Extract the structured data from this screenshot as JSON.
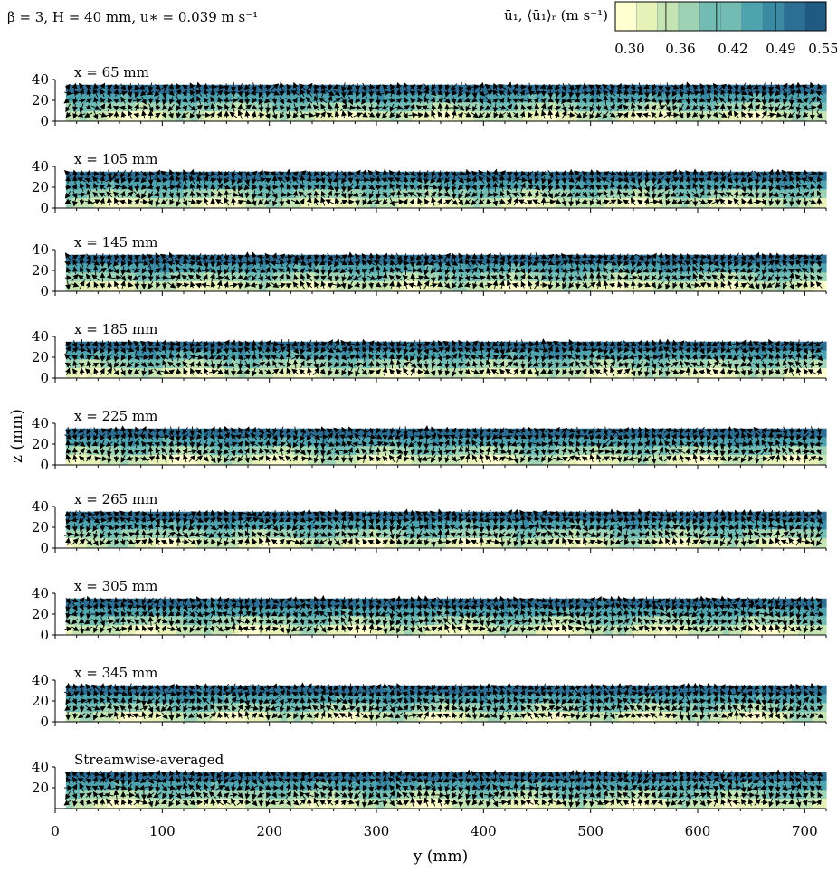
{
  "figure": {
    "header": "β = 3, H = 40 mm, u∗ = 0.039 m s⁻¹",
    "colorbar_label": "ū₁, ⟨ū₁⟩ᵣ (m s⁻¹)",
    "colorbar_ticks": [
      "0.30",
      "0.36",
      "0.42",
      "0.49",
      "0.55"
    ],
    "colorbar_range": [
      0.3,
      0.55
    ],
    "colormap": [
      "#ffffd0",
      "#e6f2b8",
      "#c4e4b3",
      "#9dd2b5",
      "#72bcb4",
      "#4ea3ae",
      "#3a8aa3",
      "#2d6f94",
      "#1f5a82"
    ],
    "quiver_color": "#000000"
  },
  "chart_data": {
    "type": "quiver-heatmap",
    "ylabel": "z (mm)",
    "xlabel": "y (mm)",
    "xlim": [
      0,
      720
    ],
    "ylim": [
      0,
      40
    ],
    "xticks": [
      "0",
      "100",
      "200",
      "300",
      "400",
      "500",
      "600",
      "700"
    ],
    "yticks": [
      "0",
      "20",
      "40"
    ],
    "yticks_last": [
      "20",
      "40"
    ],
    "panels": [
      {
        "label": "x = 65 mm"
      },
      {
        "label": "x = 105 mm"
      },
      {
        "label": "x = 145 mm"
      },
      {
        "label": "x = 185 mm"
      },
      {
        "label": "x = 225 mm"
      },
      {
        "label": "x = 265 mm"
      },
      {
        "label": "x = 305 mm"
      },
      {
        "label": "x = 345 mm"
      },
      {
        "label": "Streamwise-averaged"
      }
    ]
  }
}
